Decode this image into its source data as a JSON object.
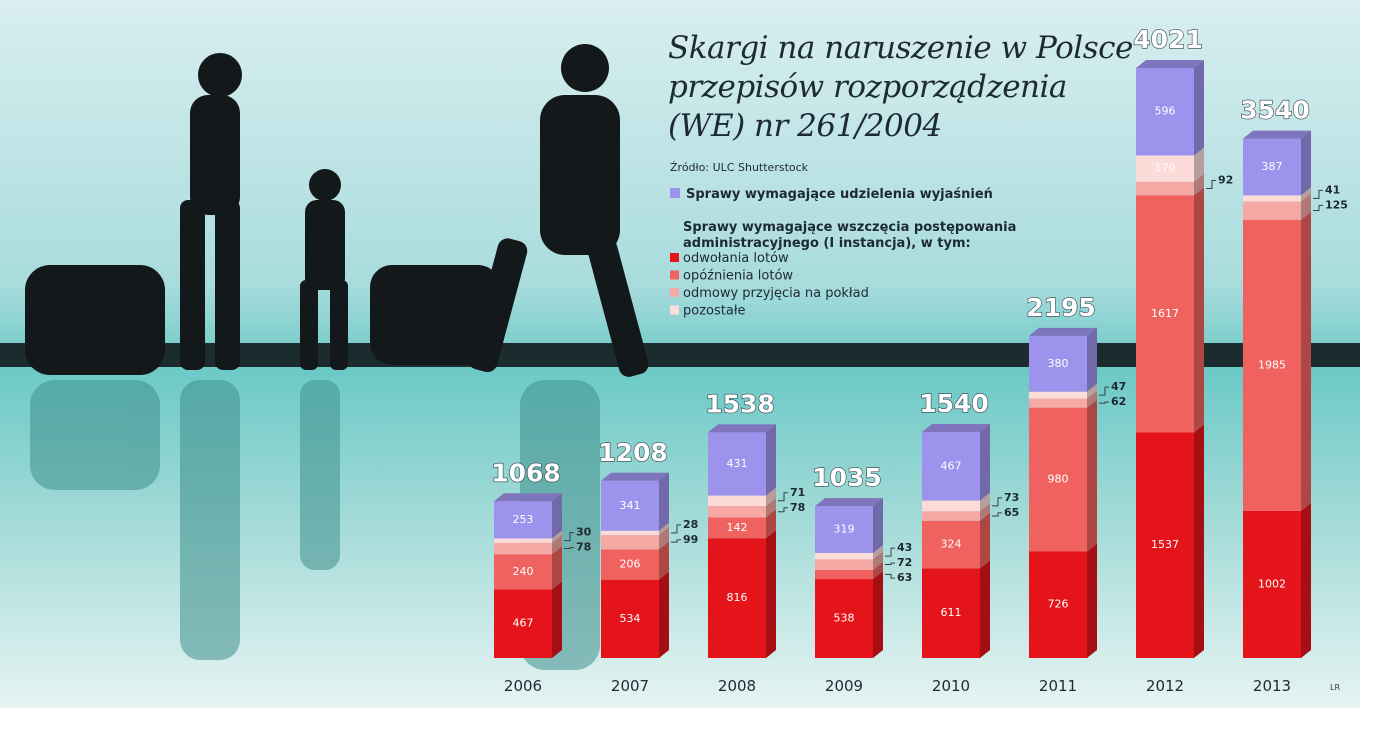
{
  "chart_data": {
    "type": "stacked_bar_3d",
    "title": "Skargi na naruszenie w Polsce przepisów rozporządzenia (WE) nr 261/2004",
    "source": "Źródło: ULC",
    "photo_credit": "Shutterstock",
    "author": "LR",
    "legend_group_title": "Sprawy wymagające wszczęcia postępowania administracyjnego (I instancja), w tym:",
    "categories": [
      "2006",
      "2007",
      "2008",
      "2009",
      "2010",
      "2011",
      "2012",
      "2013"
    ],
    "totals": [
      1068,
      1208,
      1538,
      1035,
      1540,
      2195,
      4021,
      3540
    ],
    "series": [
      {
        "name": "odwołania lotów",
        "color": "#e5141a",
        "values": [
          467,
          534,
          816,
          538,
          611,
          726,
          1537,
          1002
        ]
      },
      {
        "name": "opóźnienia lotów",
        "color": "#f0625f",
        "values": [
          240,
          206,
          142,
          63,
          324,
          980,
          1617,
          1985
        ]
      },
      {
        "name": "odmowy przyjęcia na pokład",
        "color": "#f6a8a4",
        "values": [
          78,
          99,
          78,
          72,
          65,
          62,
          92,
          125
        ]
      },
      {
        "name": "pozostałe",
        "color": "#fbdcd8",
        "values": [
          30,
          28,
          71,
          43,
          73,
          47,
          179,
          41
        ]
      },
      {
        "name": "Sprawy wymagające udzielenia wyjaśnień",
        "color": "#9d92ec",
        "values": [
          253,
          341,
          431,
          319,
          467,
          380,
          596,
          387
        ]
      }
    ]
  }
}
